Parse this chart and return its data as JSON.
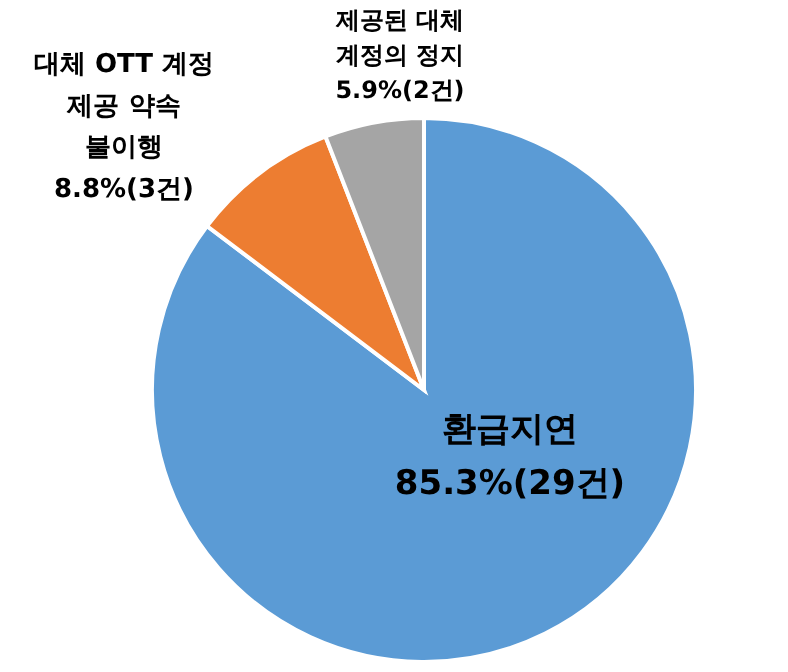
{
  "chart_data": {
    "type": "pie",
    "categories": [
      "환급지연",
      "대체 OTT 계정 제공 약속 불이행",
      "제공된 대체 계정의 정지"
    ],
    "values": [
      85.3,
      8.8,
      5.9
    ],
    "colors": [
      "#5b9bd5",
      "#ed7d31",
      "#a5a5a5"
    ],
    "value_labels": [
      "85.3%(29건)",
      "8.8%(3건)",
      "5.9%(2건)"
    ]
  }
}
